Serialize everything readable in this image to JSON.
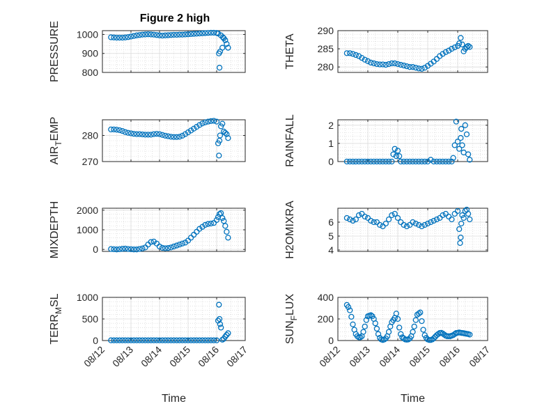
{
  "figure": {
    "title": "Figure 2 high",
    "marker_color": "#0072BD"
  },
  "chart_data": [
    {
      "type": "scatter",
      "ylabel": "PRESSURE",
      "ylabel_sub": "",
      "ylim": [
        800,
        1020
      ],
      "yticks": [
        800,
        900,
        1000
      ],
      "xticks": [],
      "xlabel": "",
      "grid": true,
      "x": [
        12.3,
        12.4,
        12.5,
        12.6,
        12.7,
        12.8,
        12.9,
        13.0,
        13.1,
        13.2,
        13.3,
        13.4,
        13.5,
        13.6,
        13.7,
        13.8,
        13.9,
        14.0,
        14.1,
        14.2,
        14.3,
        14.4,
        14.5,
        14.6,
        14.7,
        14.8,
        14.9,
        15.0,
        15.1,
        15.2,
        15.3,
        15.4,
        15.5,
        15.6,
        15.7,
        15.8,
        15.9,
        16.0,
        16.05,
        16.08,
        16.1,
        16.12,
        16.15,
        16.2,
        16.22,
        16.25,
        16.3,
        16.35,
        16.4
      ],
      "y": [
        985,
        984,
        983,
        983,
        983,
        984,
        986,
        989,
        992,
        995,
        997,
        999,
        1000,
        1001,
        1000,
        999,
        997,
        995,
        994,
        995,
        996,
        997,
        998,
        998,
        999,
        999,
        1000,
        1001,
        1002,
        1003,
        1004,
        1005,
        1006,
        1007,
        1008,
        1009,
        1009,
        1008,
        1005,
        900,
        825,
        910,
        995,
        930,
        985,
        980,
        970,
        950,
        930
      ]
    },
    {
      "type": "scatter",
      "ylabel": "THETA",
      "ylabel_sub": "",
      "ylim": [
        278.5,
        290
      ],
      "yticks": [
        280,
        285,
        290
      ],
      "xticks": [],
      "xlabel": "",
      "grid": true,
      "x": [
        12.3,
        12.4,
        12.5,
        12.6,
        12.7,
        12.8,
        12.9,
        13.0,
        13.1,
        13.2,
        13.3,
        13.4,
        13.5,
        13.6,
        13.7,
        13.8,
        13.9,
        14.0,
        14.1,
        14.2,
        14.3,
        14.4,
        14.5,
        14.6,
        14.7,
        14.8,
        14.9,
        15.0,
        15.1,
        15.2,
        15.3,
        15.4,
        15.5,
        15.6,
        15.7,
        15.8,
        15.9,
        16.0,
        16.05,
        16.1,
        16.15,
        16.2,
        16.25,
        16.3,
        16.35,
        16.4
      ],
      "y": [
        283.8,
        283.8,
        283.6,
        283.3,
        283.0,
        282.5,
        282.0,
        281.6,
        281.2,
        281.0,
        280.8,
        280.7,
        280.7,
        280.6,
        280.8,
        281.0,
        281.0,
        280.8,
        280.6,
        280.4,
        280.2,
        280.0,
        280.0,
        279.8,
        279.6,
        279.5,
        279.8,
        280.3,
        280.9,
        281.5,
        282.2,
        283.0,
        283.6,
        284.1,
        284.5,
        285.0,
        285.4,
        285.8,
        286.5,
        288.0,
        286.2,
        284.3,
        285.0,
        285.5,
        285.8,
        285.5
      ]
    },
    {
      "type": "scatter",
      "ylabel": "AIR",
      "ylabel_sub": "T",
      "ylabel_rest": "EMP",
      "ylim": [
        270,
        286
      ],
      "yticks": [
        270,
        280
      ],
      "xticks": [],
      "xlabel": "",
      "grid": true,
      "x": [
        12.3,
        12.4,
        12.5,
        12.6,
        12.7,
        12.8,
        12.9,
        13.0,
        13.1,
        13.2,
        13.3,
        13.4,
        13.5,
        13.6,
        13.7,
        13.8,
        13.9,
        14.0,
        14.1,
        14.2,
        14.3,
        14.4,
        14.5,
        14.6,
        14.7,
        14.8,
        14.9,
        15.0,
        15.1,
        15.2,
        15.3,
        15.4,
        15.5,
        15.6,
        15.7,
        15.8,
        15.9,
        16.0,
        16.05,
        16.08,
        16.1,
        16.12,
        16.15,
        16.2,
        16.25,
        16.3,
        16.35,
        16.4
      ],
      "y": [
        282.3,
        282.3,
        282.2,
        282.0,
        281.7,
        281.3,
        281.0,
        280.8,
        280.6,
        280.5,
        280.5,
        280.4,
        280.3,
        280.3,
        280.3,
        280.5,
        280.6,
        280.5,
        280.2,
        279.9,
        279.7,
        279.5,
        279.4,
        279.4,
        279.5,
        279.9,
        280.5,
        281.2,
        281.9,
        282.6,
        283.3,
        284.0,
        284.6,
        285.0,
        285.3,
        285.5,
        285.6,
        285.3,
        277.0,
        272.3,
        278.0,
        280.0,
        283.5,
        284.5,
        281.5,
        281.0,
        280.5,
        279.0
      ]
    },
    {
      "type": "scatter",
      "ylabel": "RAINFALL",
      "ylabel_sub": "",
      "ylim": [
        0,
        2.3
      ],
      "yticks": [
        0,
        1,
        2
      ],
      "xticks": [],
      "xlabel": "",
      "grid": true,
      "x": [
        12.3,
        12.4,
        12.5,
        12.6,
        12.7,
        12.8,
        12.9,
        13.0,
        13.1,
        13.2,
        13.3,
        13.4,
        13.5,
        13.6,
        13.7,
        13.8,
        13.85,
        13.9,
        13.95,
        14.0,
        14.05,
        14.1,
        14.2,
        14.3,
        14.4,
        14.5,
        14.6,
        14.7,
        14.8,
        14.9,
        15.0,
        15.1,
        15.2,
        15.3,
        15.4,
        15.5,
        15.6,
        15.7,
        15.8,
        15.85,
        15.9,
        15.95,
        16.0,
        16.05,
        16.1,
        16.12,
        16.15,
        16.2,
        16.25,
        16.3,
        16.35,
        16.4
      ],
      "y": [
        0,
        0,
        0,
        0,
        0,
        0,
        0,
        0,
        0,
        0,
        0,
        0,
        0,
        0,
        0,
        0,
        0.4,
        0.7,
        0.3,
        0.6,
        0.3,
        0,
        0,
        0,
        0,
        0,
        0,
        0,
        0,
        0,
        0,
        0.1,
        0,
        0,
        0,
        0,
        0,
        0,
        0,
        0.2,
        0.9,
        2.2,
        1.1,
        0.7,
        1.3,
        1.8,
        0.9,
        0.5,
        2.0,
        1.5,
        0.4,
        0.1
      ]
    },
    {
      "type": "scatter",
      "ylabel": "MIXDEPTH",
      "ylabel_sub": "",
      "ylim": [
        -100,
        2100
      ],
      "yticks": [
        0,
        1000,
        2000
      ],
      "xticks": [],
      "xlabel": "",
      "grid": true,
      "x": [
        12.3,
        12.4,
        12.5,
        12.6,
        12.7,
        12.8,
        12.9,
        13.0,
        13.1,
        13.2,
        13.3,
        13.4,
        13.5,
        13.6,
        13.7,
        13.8,
        13.9,
        14.0,
        14.1,
        14.2,
        14.3,
        14.4,
        14.5,
        14.6,
        14.7,
        14.8,
        14.9,
        15.0,
        15.1,
        15.2,
        15.3,
        15.4,
        15.5,
        15.6,
        15.7,
        15.8,
        15.9,
        16.0,
        16.05,
        16.1,
        16.15,
        16.2,
        16.25,
        16.3,
        16.35,
        16.4
      ],
      "y": [
        20,
        10,
        0,
        10,
        30,
        40,
        20,
        10,
        0,
        0,
        20,
        50,
        100,
        250,
        380,
        400,
        300,
        150,
        80,
        60,
        70,
        100,
        150,
        200,
        250,
        300,
        350,
        450,
        600,
        750,
        900,
        1050,
        1150,
        1250,
        1300,
        1320,
        1350,
        1500,
        1650,
        1800,
        1850,
        1600,
        1450,
        1200,
        900,
        600
      ]
    },
    {
      "type": "scatter",
      "ylabel": "H2OMIXRA",
      "ylabel_sub": "",
      "ylim": [
        3.9,
        7.0
      ],
      "yticks": [
        4,
        5,
        6
      ],
      "xticks": [],
      "xlabel": "",
      "grid": true,
      "x": [
        12.3,
        12.4,
        12.5,
        12.6,
        12.7,
        12.8,
        12.9,
        13.0,
        13.1,
        13.2,
        13.3,
        13.4,
        13.5,
        13.6,
        13.7,
        13.8,
        13.9,
        14.0,
        14.1,
        14.2,
        14.3,
        14.4,
        14.5,
        14.6,
        14.7,
        14.8,
        14.9,
        15.0,
        15.1,
        15.2,
        15.3,
        15.4,
        15.5,
        15.6,
        15.7,
        15.8,
        15.9,
        16.0,
        16.05,
        16.08,
        16.1,
        16.12,
        16.15,
        16.2,
        16.25,
        16.3,
        16.35,
        16.4
      ],
      "y": [
        6.3,
        6.2,
        6.1,
        6.2,
        6.5,
        6.6,
        6.4,
        6.3,
        6.1,
        6.0,
        6.0,
        5.8,
        5.7,
        5.9,
        6.2,
        6.5,
        6.6,
        6.3,
        6.0,
        5.8,
        5.7,
        5.8,
        6.0,
        5.9,
        5.8,
        5.7,
        5.8,
        5.9,
        6.0,
        6.1,
        6.2,
        6.3,
        6.5,
        6.6,
        6.4,
        6.2,
        6.6,
        6.8,
        5.5,
        4.5,
        4.9,
        5.9,
        6.5,
        6.3,
        6.8,
        6.9,
        6.6,
        6.2
      ]
    },
    {
      "type": "scatter",
      "ylabel": "TERR",
      "ylabel_sub": "M",
      "ylabel_rest": "SL",
      "ylim": [
        0,
        1000
      ],
      "yticks": [
        0,
        500,
        1000
      ],
      "xticks": [
        "08/12",
        "08/13",
        "08/14",
        "08/15",
        "08/16",
        "08/17"
      ],
      "xlabel": "Time",
      "grid": true,
      "x": [
        12.3,
        12.4,
        12.5,
        12.6,
        12.7,
        12.8,
        12.9,
        13.0,
        13.1,
        13.2,
        13.3,
        13.4,
        13.5,
        13.6,
        13.7,
        13.8,
        13.9,
        14.0,
        14.1,
        14.2,
        14.3,
        14.4,
        14.5,
        14.6,
        14.7,
        14.8,
        14.9,
        15.0,
        15.1,
        15.2,
        15.3,
        15.4,
        15.5,
        15.6,
        15.7,
        15.8,
        15.9,
        16.0,
        16.05,
        16.08,
        16.1,
        16.12,
        16.15,
        16.2,
        16.25,
        16.3,
        16.35,
        16.4
      ],
      "y": [
        5,
        5,
        5,
        5,
        5,
        5,
        5,
        5,
        5,
        5,
        5,
        5,
        5,
        5,
        5,
        5,
        5,
        5,
        5,
        5,
        5,
        5,
        5,
        5,
        5,
        5,
        5,
        5,
        5,
        5,
        5,
        5,
        5,
        5,
        5,
        5,
        5,
        5,
        460,
        830,
        500,
        380,
        300,
        20,
        40,
        90,
        130,
        170
      ]
    },
    {
      "type": "scatter",
      "ylabel": "SUN",
      "ylabel_sub": "F",
      "ylabel_rest": "LUX",
      "ylim": [
        0,
        400
      ],
      "yticks": [
        0,
        200,
        400
      ],
      "xticks": [
        "08/12",
        "08/13",
        "08/14",
        "08/15",
        "08/16",
        "08/17"
      ],
      "xlabel": "Time",
      "grid": true,
      "x": [
        12.3,
        12.35,
        12.4,
        12.45,
        12.5,
        12.55,
        12.6,
        12.65,
        12.7,
        12.75,
        12.8,
        12.85,
        12.9,
        12.95,
        13.0,
        13.05,
        13.1,
        13.15,
        13.2,
        13.25,
        13.3,
        13.35,
        13.4,
        13.45,
        13.5,
        13.55,
        13.6,
        13.65,
        13.7,
        13.75,
        13.8,
        13.85,
        13.9,
        13.95,
        14.0,
        14.05,
        14.1,
        14.15,
        14.2,
        14.25,
        14.3,
        14.35,
        14.4,
        14.45,
        14.5,
        14.55,
        14.6,
        14.65,
        14.7,
        14.75,
        14.8,
        14.85,
        14.9,
        14.95,
        15.0,
        15.05,
        15.1,
        15.15,
        15.2,
        15.25,
        15.3,
        15.35,
        15.4,
        15.45,
        15.5,
        15.55,
        15.6,
        15.65,
        15.7,
        15.75,
        15.8,
        15.85,
        15.9,
        15.95,
        16.0,
        16.05,
        16.1,
        16.15,
        16.2,
        16.25,
        16.3,
        16.35,
        16.4
      ],
      "y": [
        330,
        310,
        280,
        220,
        150,
        100,
        60,
        40,
        30,
        30,
        40,
        80,
        130,
        190,
        225,
        230,
        235,
        225,
        200,
        160,
        110,
        60,
        25,
        10,
        5,
        10,
        20,
        40,
        80,
        130,
        170,
        190,
        210,
        250,
        200,
        120,
        60,
        30,
        20,
        10,
        8,
        10,
        20,
        40,
        80,
        130,
        190,
        240,
        250,
        260,
        180,
        100,
        50,
        25,
        10,
        5,
        5,
        10,
        20,
        35,
        50,
        60,
        70,
        72,
        65,
        55,
        45,
        40,
        40,
        40,
        45,
        50,
        60,
        70,
        72,
        75,
        72,
        70,
        68,
        65,
        62,
        60,
        55
      ]
    }
  ]
}
